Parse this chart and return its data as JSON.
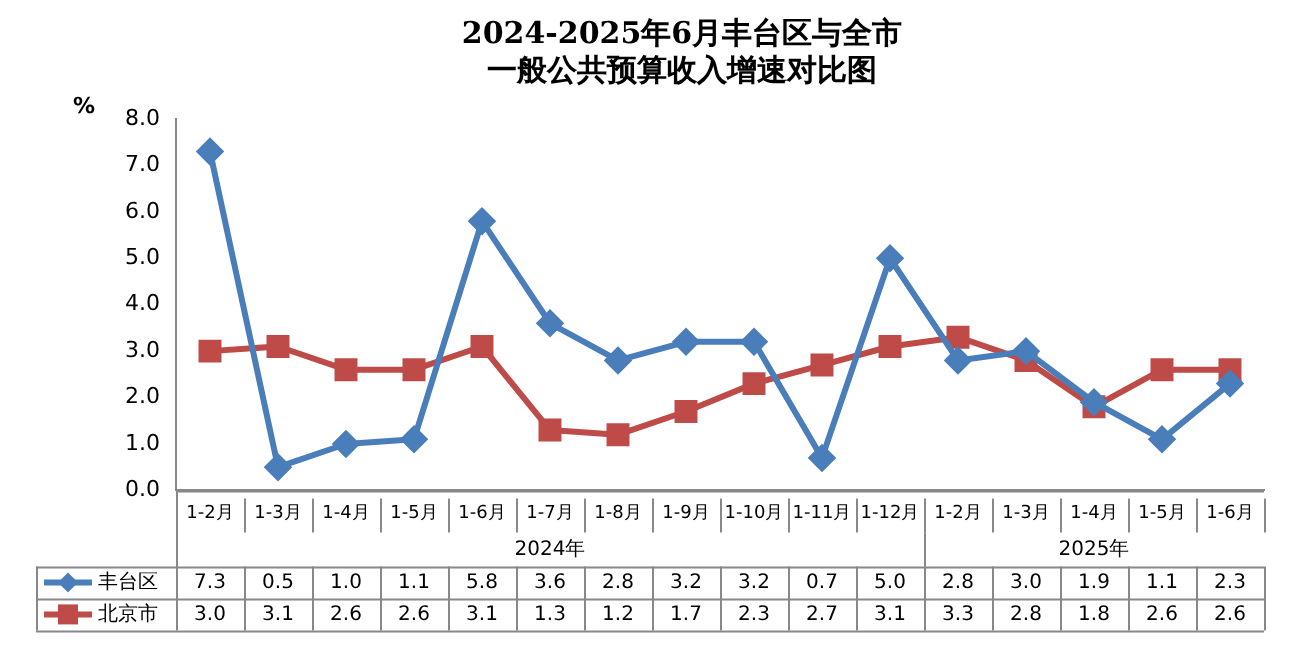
{
  "chart_data": {
    "type": "line",
    "title": "2024-2025年6月丰台区与全市一般公共预算收入增速对比图",
    "ylabel": "%",
    "categories": [
      "1-2月",
      "1-3月",
      "1-4月",
      "1-5月",
      "1-6月",
      "1-7月",
      "1-8月",
      "1-9月",
      "1-10月",
      "1-11月",
      "1-12月",
      "1-2月",
      "1-3月",
      "1-4月",
      "1-5月",
      "1-6月"
    ],
    "annotations": [
      "2024年",
      "2025年"
    ],
    "series": [
      {
        "name": "丰台区",
        "color": "#4a7ebb",
        "marker": "diamond",
        "values": [
          7.3,
          0.5,
          1.0,
          1.1,
          5.8,
          3.6,
          2.8,
          3.2,
          3.2,
          0.7,
          5.0,
          2.8,
          3.0,
          1.9,
          1.1,
          2.3
        ],
        "value_labels": [
          "7.3",
          "0.5",
          "1.0",
          "1.1",
          "5.8",
          "3.6",
          "2.8",
          "3.2",
          "3.2",
          "0.7",
          "5.0",
          "2.8",
          "3.0",
          "1.9",
          "1.1",
          "2.3"
        ]
      },
      {
        "name": "北京市",
        "color": "#be4b48",
        "marker": "square",
        "values": [
          3.0,
          3.1,
          2.6,
          2.6,
          3.1,
          1.3,
          1.2,
          1.7,
          2.3,
          2.7,
          3.1,
          3.3,
          2.8,
          1.8,
          2.6,
          2.6
        ],
        "value_labels": [
          "3.0",
          "3.1",
          "2.6",
          "2.6",
          "3.1",
          "1.3",
          "1.2",
          "1.7",
          "2.3",
          "2.7",
          "3.1",
          "3.3",
          "2.8",
          "1.8",
          "2.6",
          "2.6"
        ]
      }
    ],
    "ylim": [
      0,
      8
    ],
    "yticks": [
      {
        "value": 0,
        "label": "0.0"
      },
      {
        "value": 1,
        "label": "1.0"
      },
      {
        "value": 2,
        "label": "2.0"
      },
      {
        "value": 3,
        "label": "3.0"
      },
      {
        "value": 4,
        "label": "4.0"
      },
      {
        "value": 5,
        "label": "5.0"
      },
      {
        "value": 6,
        "label": "6.0"
      },
      {
        "value": 7,
        "label": "7.0"
      },
      {
        "value": 8,
        "label": "8.0"
      }
    ],
    "grid": false,
    "legend": "bottom left",
    "line_style": "solid"
  }
}
